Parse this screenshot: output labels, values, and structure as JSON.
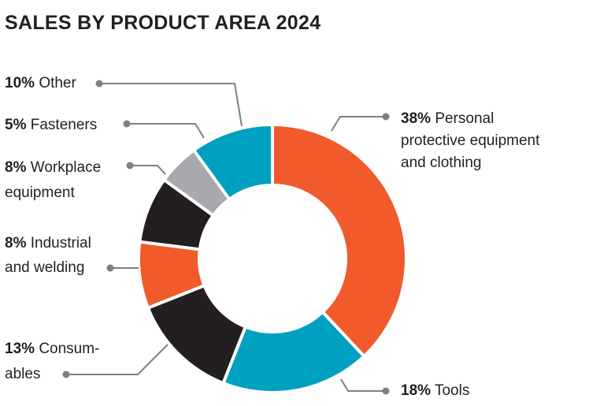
{
  "chart_data": {
    "type": "pie",
    "variant": "donut",
    "title": "SALES BY PRODUCT AREA 2024",
    "start": "top",
    "direction": "clockwise",
    "slices": [
      {
        "pct_label": "38%",
        "label_lines": [
          "Personal",
          "protective equipment",
          "and clothing"
        ],
        "value": 38,
        "color": "#f15a2b"
      },
      {
        "pct_label": "18%",
        "label_lines": [
          "Tools"
        ],
        "value": 18,
        "color": "#00a0c1"
      },
      {
        "pct_label": "13%",
        "label_lines": [
          "Consum-",
          "ables"
        ],
        "value": 13,
        "color": "#231f20"
      },
      {
        "pct_label": "8%",
        "label_lines": [
          "Industrial",
          "and welding"
        ],
        "value": 8,
        "color": "#f15a2b"
      },
      {
        "pct_label": "8%",
        "label_lines": [
          "Workplace",
          "equipment"
        ],
        "value": 8,
        "color": "#231f20"
      },
      {
        "pct_label": "5%",
        "label_lines": [
          "Fasteners"
        ],
        "value": 5,
        "color": "#a7a9ac"
      },
      {
        "pct_label": "10%",
        "label_lines": [
          "Other"
        ],
        "value": 10,
        "color": "#00a0c1"
      }
    ]
  }
}
